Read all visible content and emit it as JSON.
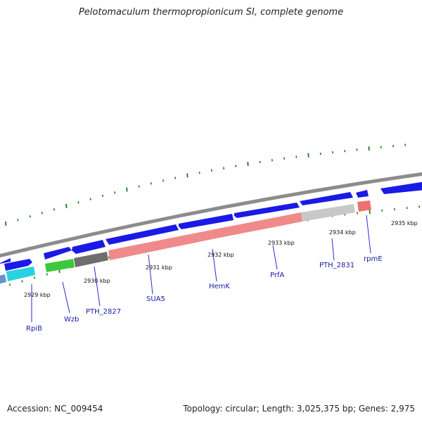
{
  "title": "Pelotomaculum thermopropionicum SI, complete genome",
  "footer": {
    "accession": "Accession: NC_009454",
    "summary": "Topology: circular; Length: 3,025,375 bp; Genes: 2,975"
  },
  "colors": {
    "backbone": "#8c8c8c",
    "forward_gene": "#1a1ae6",
    "tick": "#1e7a1e",
    "label": "#1a1aaa",
    "leader": "#2a2ad0"
  },
  "kbp_labels": [
    "2929 kbp",
    "2930 kbp",
    "2931 kbp",
    "2932 kbp",
    "2933 kbp",
    "2934 kbp",
    "2935 kbp"
  ],
  "gene_labels": [
    "RpiB",
    "Wzb",
    "PTH_2827",
    "SUA5",
    "HemK",
    "PrfA",
    "PTH_2831",
    "rpmE"
  ],
  "reverse_gene_colors": [
    "#6a8fd0",
    "#28d2e0",
    "#3cc83c",
    "#6e6e6e",
    "#f08a8a",
    "#f08a8a",
    "#c8c8c8",
    "#f07070"
  ]
}
